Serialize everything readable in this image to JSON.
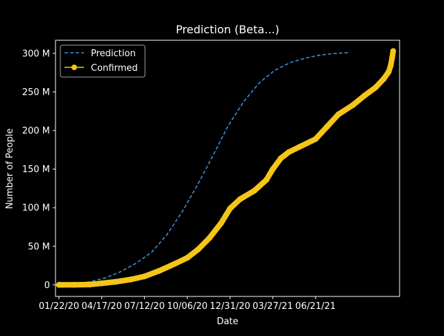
{
  "chart_data": {
    "type": "line",
    "title": "Prediction (Beta...)",
    "xlabel": "Date",
    "ylabel": "Number of People",
    "x_ticks": [
      "01/22/20",
      "04/17/20",
      "07/12/20",
      "10/06/20",
      "12/31/20",
      "03/27/21",
      "06/21/21"
    ],
    "x_range": [
      "01/15/20",
      "12/07/21"
    ],
    "y_ticks": [
      "0",
      "50 M",
      "100 M",
      "150 M",
      "200 M",
      "250 M",
      "300 M"
    ],
    "ylim": [
      -15,
      317
    ],
    "legend_position": "top-left",
    "grid": false,
    "colors": {
      "background": "#000000",
      "prediction": "#3a8fd8",
      "confirmed": "#f5c518",
      "text": "#ffffff"
    },
    "series": [
      {
        "name": "Prediction",
        "style": "dashed",
        "x": [
          "01/22/20",
          "02/22/20",
          "03/24/20",
          "04/24/20",
          "05/25/20",
          "06/25/20",
          "07/26/20",
          "08/26/20",
          "09/26/20",
          "10/27/20",
          "11/27/20",
          "12/28/20",
          "01/28/21",
          "02/28/21",
          "03/31/21",
          "05/01/21",
          "06/01/21",
          "07/02/21",
          "08/02/21",
          "08/26/21"
        ],
        "y": [
          0,
          2,
          4,
          9,
          17,
          28,
          42,
          65,
          95,
          130,
          168,
          207,
          238,
          262,
          278,
          288,
          294,
          298,
          300,
          301
        ]
      },
      {
        "name": "Confirmed",
        "style": "line-markers",
        "x": [
          "01/22/20",
          "02/22/20",
          "03/24/20",
          "04/17/20",
          "05/15/20",
          "06/15/20",
          "07/12/20",
          "08/10/20",
          "09/10/20",
          "10/06/20",
          "10/28/20",
          "11/20/20",
          "12/13/20",
          "12/31/20",
          "01/20/21",
          "02/18/21",
          "03/14/21",
          "03/27/21",
          "04/12/21",
          "04/28/21",
          "05/20/21",
          "06/21/21",
          "07/14/21",
          "08/06/21",
          "09/04/21",
          "09/27/21",
          "10/20/21",
          "11/05/21",
          "11/15/21",
          "11/19/21",
          "11/22/21",
          "11/24/21"
        ],
        "y": [
          0,
          0,
          0.5,
          2,
          4,
          7,
          11,
          18,
          27,
          35,
          46,
          61,
          80,
          99,
          111,
          122,
          136,
          150,
          164,
          172,
          179,
          189,
          205,
          221,
          233,
          245,
          256,
          267,
          276,
          284,
          294,
          303
        ]
      }
    ]
  }
}
